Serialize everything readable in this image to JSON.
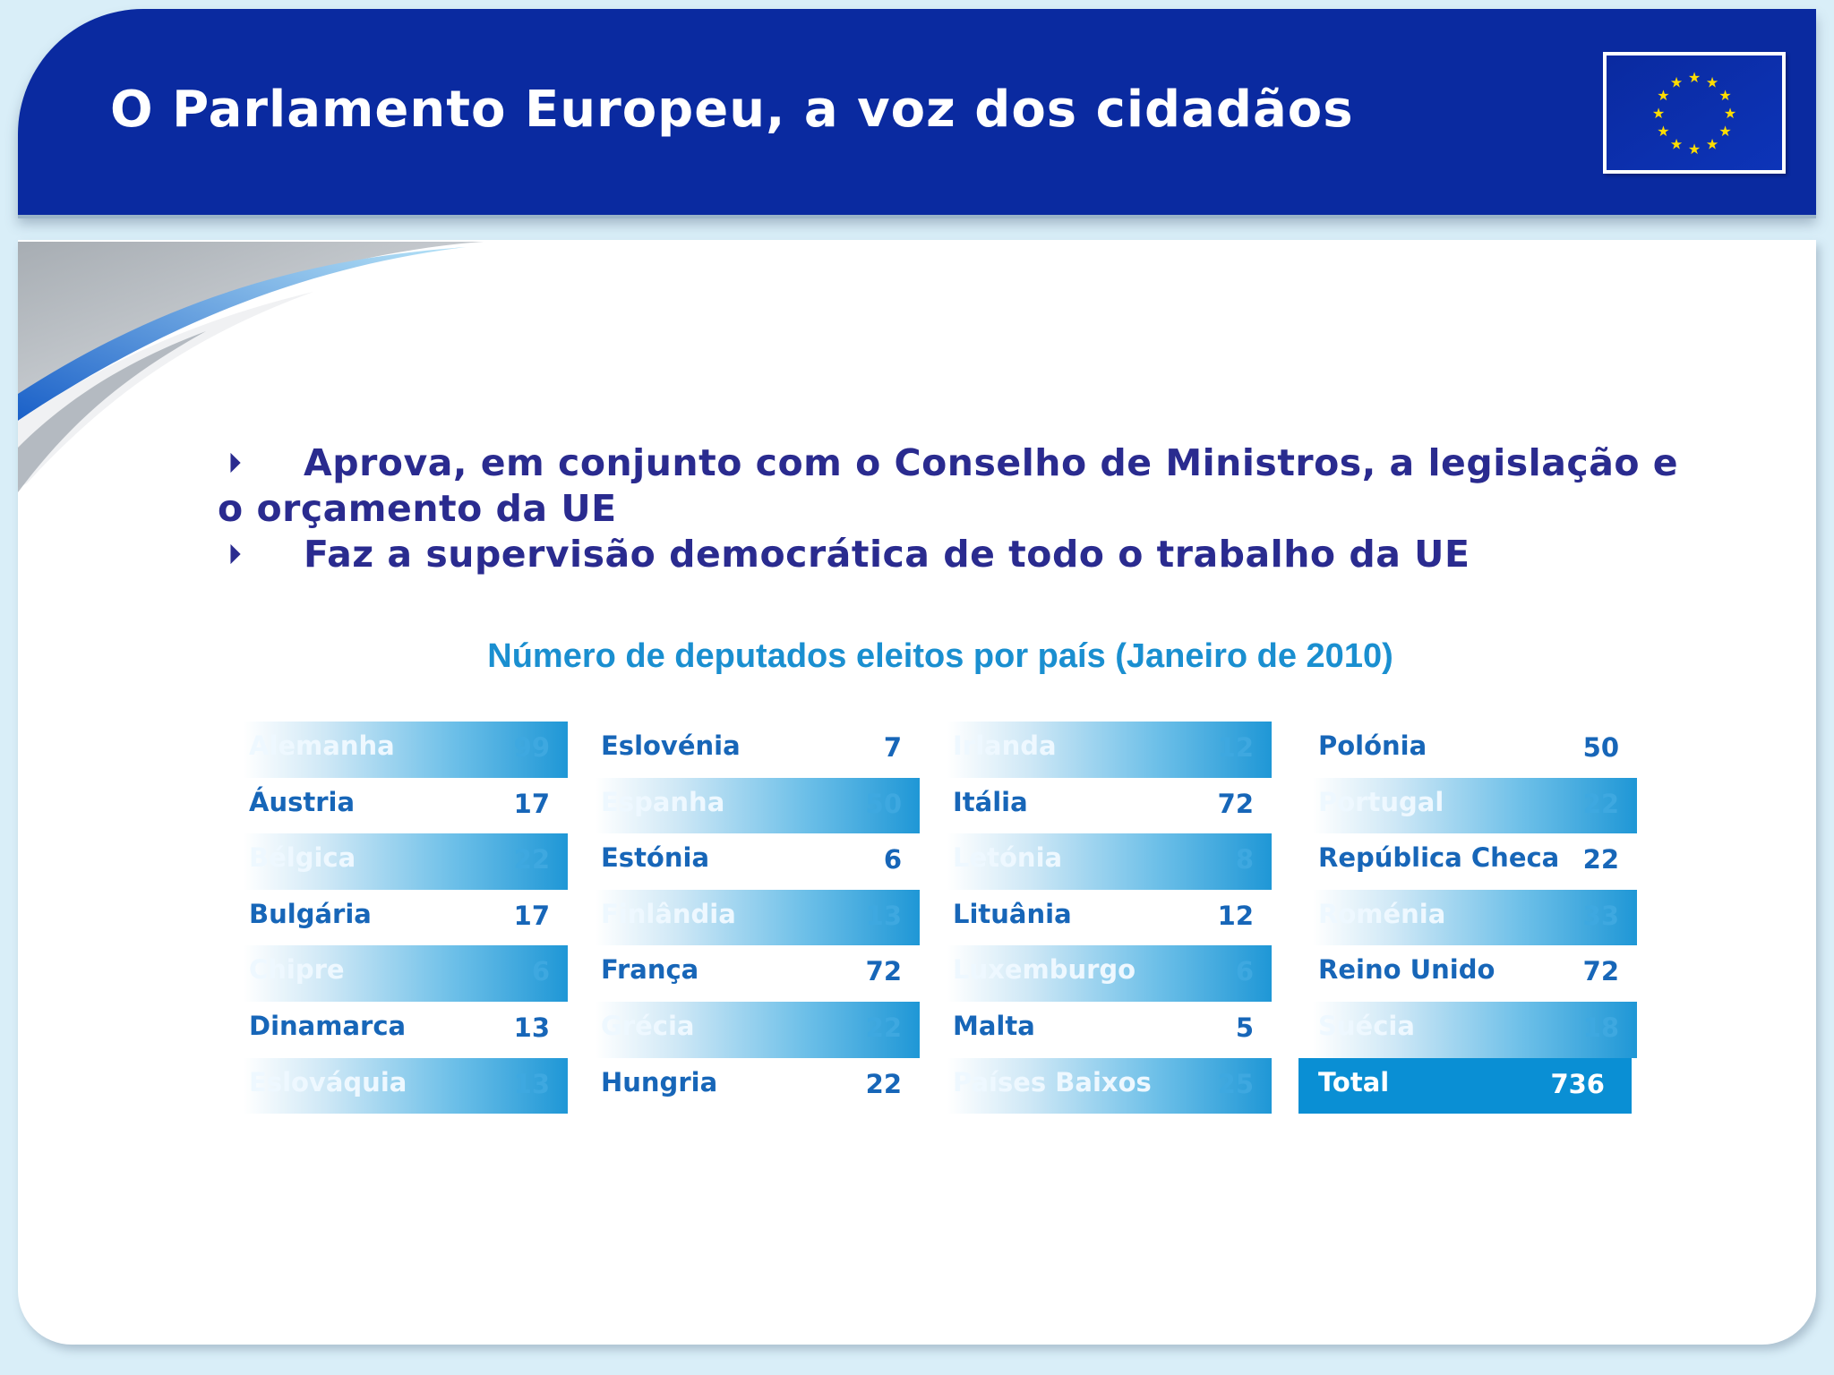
{
  "header": {
    "title": "O Parlamento Europeu, a voz dos cidadãos"
  },
  "bullets": [
    {
      "arrow": "⏵",
      "line1": "Aprova, em conjunto com o Conselho de Ministros, a legislação e",
      "line2": "o orçamento da UE"
    },
    {
      "arrow": "⏵",
      "line1": "Faz a supervisão democrática de todo o trabalho da UE"
    }
  ],
  "table": {
    "title": "Número de deputados eleitos por país (Janeiro de 2010)",
    "columns": [
      [
        {
          "name": "Alemanha",
          "value": "99"
        },
        {
          "name": "Áustria",
          "value": "17"
        },
        {
          "name": "Bélgica",
          "value": "22"
        },
        {
          "name": "Bulgária",
          "value": "17"
        },
        {
          "name": "Chipre",
          "value": "6"
        },
        {
          "name": "Dinamarca",
          "value": "13"
        },
        {
          "name": "Eslováquia",
          "value": "13"
        }
      ],
      [
        {
          "name": "Eslovénia",
          "value": "7"
        },
        {
          "name": "Espanha",
          "value": "50"
        },
        {
          "name": "Estónia",
          "value": "6"
        },
        {
          "name": "Finlândia",
          "value": "13"
        },
        {
          "name": "França",
          "value": "72"
        },
        {
          "name": "Grécia",
          "value": "22"
        },
        {
          "name": "Hungria",
          "value": "22"
        }
      ],
      [
        {
          "name": "Irlanda",
          "value": "12"
        },
        {
          "name": "Itália",
          "value": "72"
        },
        {
          "name": "Letónia",
          "value": "8"
        },
        {
          "name": "Lituânia",
          "value": "12"
        },
        {
          "name": "Luxemburgo",
          "value": "6"
        },
        {
          "name": "Malta",
          "value": "5"
        },
        {
          "name": "Países Baixos",
          "value": "25"
        }
      ],
      [
        {
          "name": "Polónia",
          "value": "50"
        },
        {
          "name": "Portugal",
          "value": "22"
        },
        {
          "name": "República Checa",
          "value": "22"
        },
        {
          "name": "Roménia",
          "value": "33"
        },
        {
          "name": "Reino Unido",
          "value": "72"
        },
        {
          "name": "Suécia",
          "value": "18"
        }
      ]
    ],
    "total": {
      "name": "Total",
      "value": "736"
    }
  },
  "colors": {
    "header_blue": "#0a2aa0",
    "bullet_text": "#2a2b8f",
    "table_title": "#1a8fd0",
    "cell_text": "#1766b8",
    "total_bg": "#0a8fd4",
    "flag_star": "#ffdd00"
  },
  "icons": {
    "flag": "eu-flag-icon",
    "bullet": "triangle-right-icon"
  }
}
